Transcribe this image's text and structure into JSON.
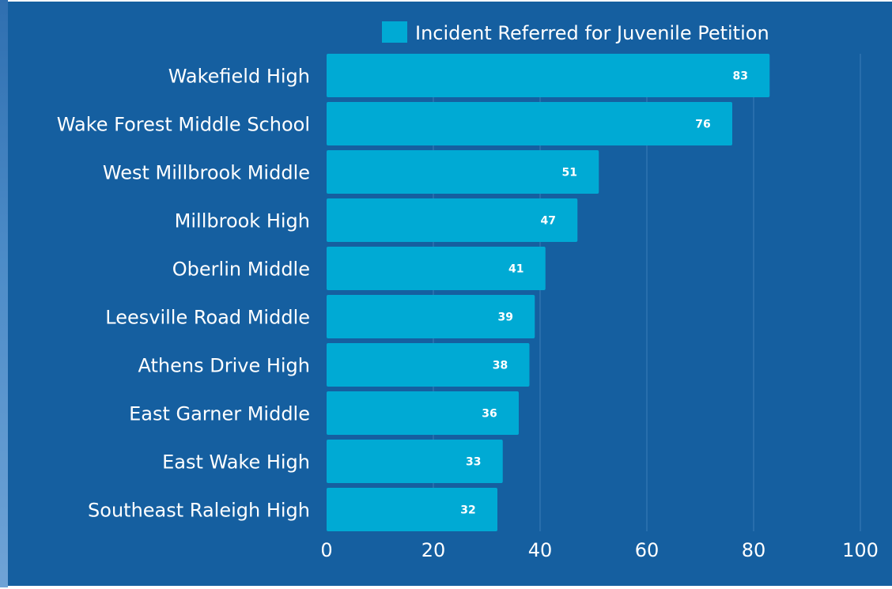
{
  "colors": {
    "background": "#155fa0",
    "bar": "#00aad4",
    "text": "#ffffff",
    "grid": "#3b7cb8"
  },
  "chart_data": {
    "type": "bar",
    "orientation": "horizontal",
    "categories": [
      "Wakefield High",
      "Wake Forest Middle School",
      "West Millbrook Middle",
      "Millbrook High",
      "Oberlin Middle",
      "Leesville Road Middle",
      "Athens Drive High",
      "East Garner Middle",
      "East Wake High",
      "Southeast Raleigh High"
    ],
    "series": [
      {
        "name": "Incident Referred for Juvenile Petition",
        "values": [
          83,
          76,
          51,
          47,
          41,
          39,
          38,
          36,
          33,
          32
        ]
      }
    ],
    "xticks": [
      "0",
      "20",
      "40",
      "60",
      "80",
      "100"
    ],
    "xlim": [
      0,
      100
    ],
    "grid": true,
    "legend": "top",
    "data_labels": true
  }
}
